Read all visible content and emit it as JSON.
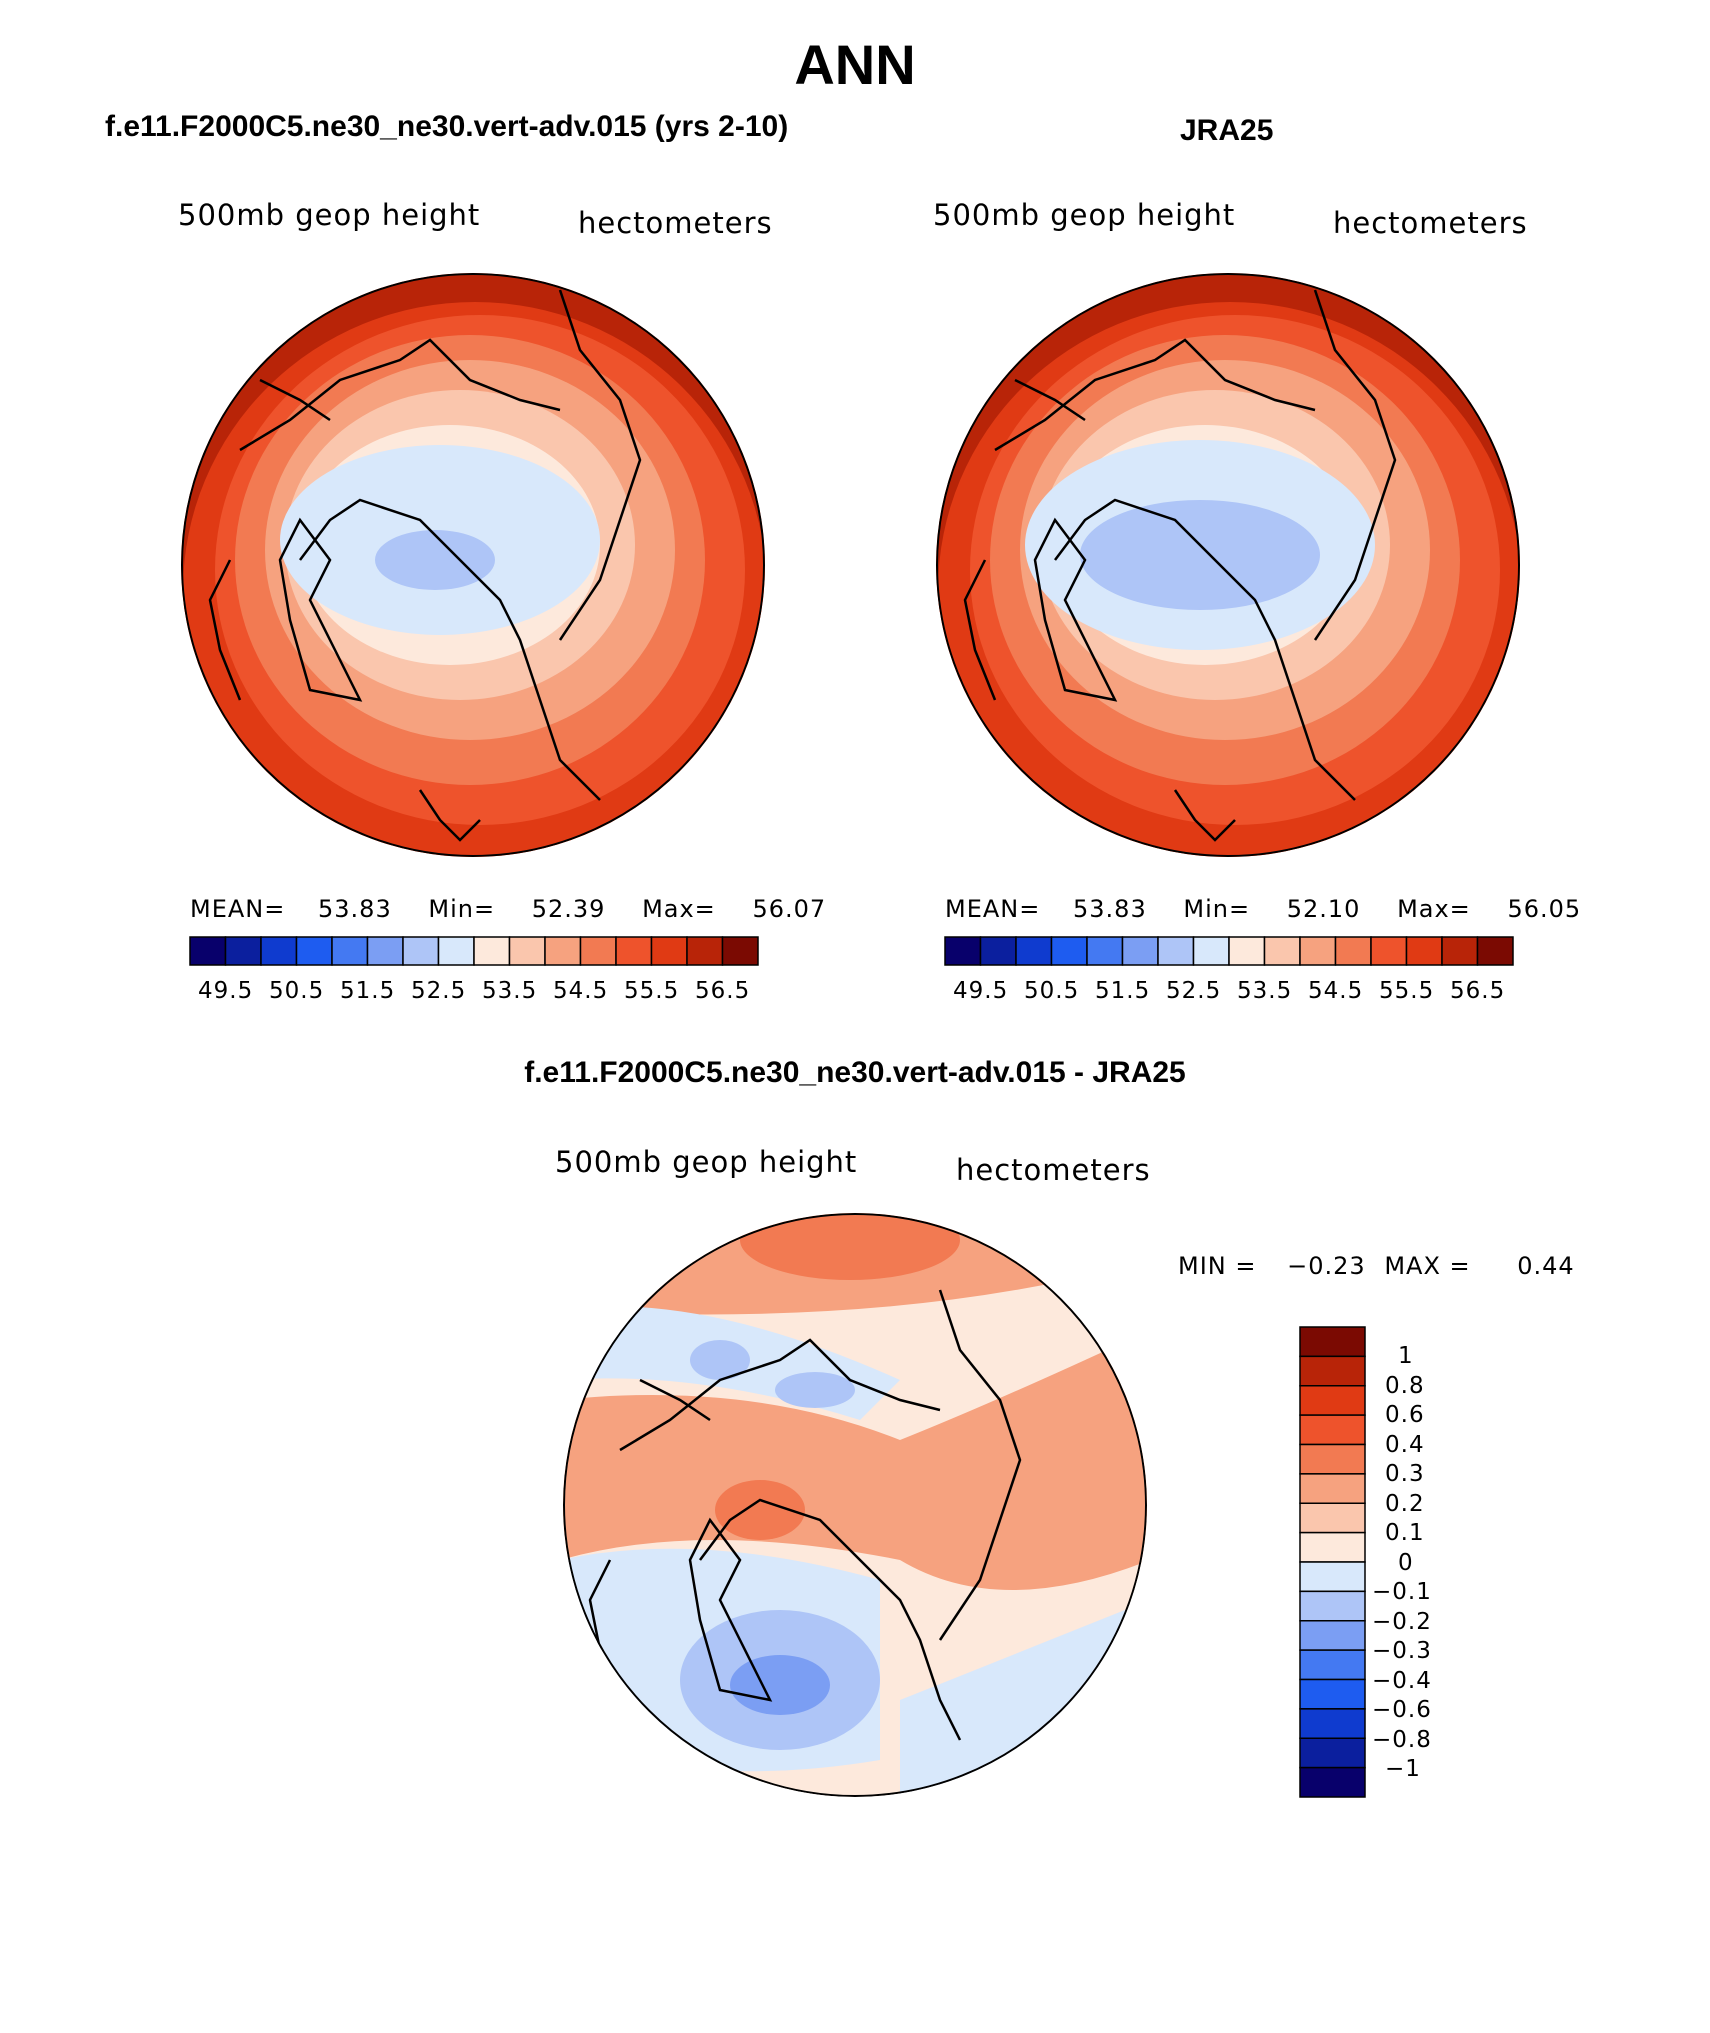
{
  "main_title": "ANN",
  "panels": [
    {
      "title": "f.e11.F2000C5.ne30_ne30.vert-adv.015 (yrs 2-10)",
      "variable": "500mb geop height",
      "units": "hectometers",
      "stats": {
        "mean_label": "MEAN=",
        "mean": "53.83",
        "min_label": "Min=",
        "min": "52.39",
        "max_label": "Max=",
        "max": "56.07"
      },
      "colorbar_ticks": [
        "49.5",
        "50.5",
        "51.5",
        "52.5",
        "53.5",
        "54.5",
        "55.5",
        "56.5"
      ]
    },
    {
      "title": "JRA25",
      "variable": "500mb geop height",
      "units": "hectometers",
      "stats": {
        "mean_label": "MEAN=",
        "mean": "53.83",
        "min_label": "Min=",
        "min": "52.10",
        "max_label": "Max=",
        "max": "56.05"
      },
      "colorbar_ticks": [
        "49.5",
        "50.5",
        "51.5",
        "52.5",
        "53.5",
        "54.5",
        "55.5",
        "56.5"
      ]
    }
  ],
  "diff_panel": {
    "title": "f.e11.F2000C5.ne30_ne30.vert-adv.015 - JRA25",
    "variable": "500mb geop height",
    "units": "hectometers",
    "stats": {
      "min_label": "MIN =",
      "min": "−0.23",
      "max_label": "MAX =",
      "max": "0.44"
    },
    "colorbar_ticks": [
      "1",
      "0.8",
      "0.6",
      "0.4",
      "0.3",
      "0.2",
      "0.1",
      "0",
      "−0.1",
      "−0.2",
      "−0.3",
      "−0.4",
      "−0.6",
      "−0.8",
      "−1"
    ]
  },
  "colors": {
    "abs_scale": [
      "#08006b",
      "#0b1f9e",
      "#0f3bcf",
      "#1e5cf0",
      "#4479f2",
      "#7b9ef3",
      "#aec5f7",
      "#d8e8fb",
      "#fde9dc",
      "#fac6ad",
      "#f6a27f",
      "#f27a52",
      "#ee532c",
      "#e03a14",
      "#b82408",
      "#7b0a02"
    ],
    "diff_scale": [
      "#7b0a02",
      "#b82408",
      "#e03a14",
      "#ee532c",
      "#f27a52",
      "#f6a27f",
      "#fac6ad",
      "#fde9dc",
      "#d8e8fb",
      "#aec5f7",
      "#7b9ef3",
      "#4479f2",
      "#1e5cf0",
      "#0f3bcf",
      "#0b1f9e",
      "#08006b"
    ]
  }
}
